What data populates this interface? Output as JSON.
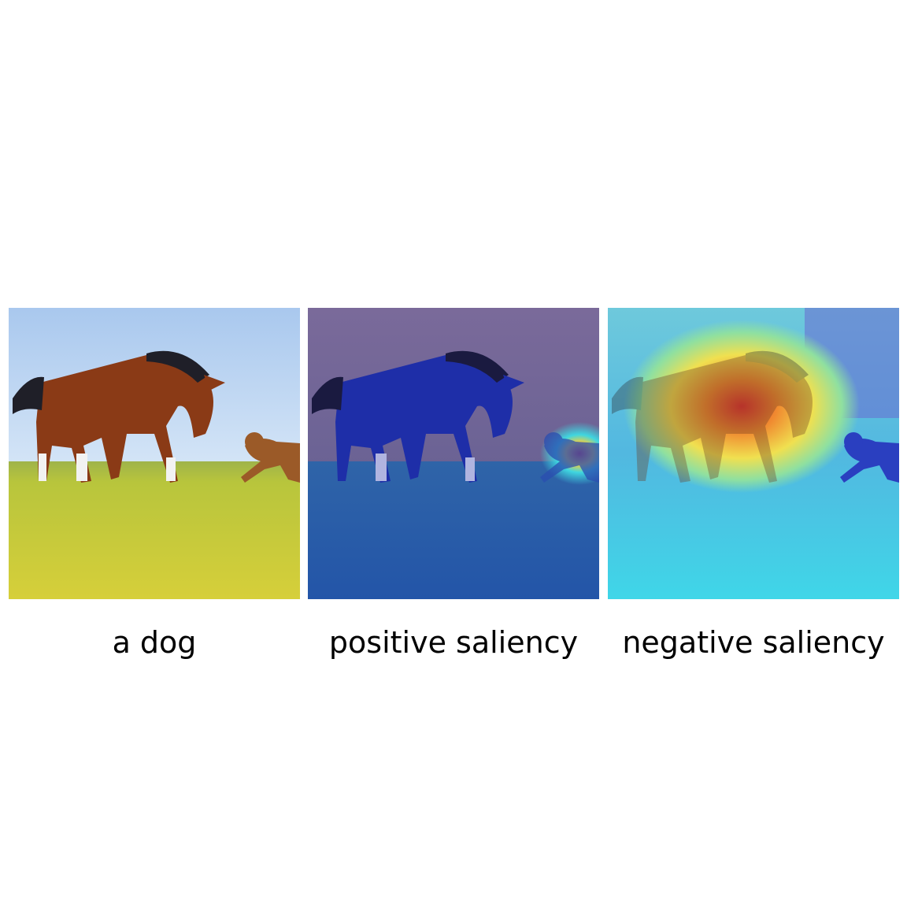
{
  "panels": [
    {
      "caption": "a dog",
      "image_icon": "horse-and-dog-photo",
      "overlay": "none"
    },
    {
      "caption": "positive saliency",
      "image_icon": "horse-and-dog-photo",
      "overlay": "saliency-heatmap"
    },
    {
      "caption": "negative saliency",
      "image_icon": "horse-and-dog-photo",
      "overlay": "saliency-heatmap"
    }
  ],
  "colors": {
    "sky": "#c3d9f2",
    "grass": "#c9c73d",
    "horse": "#8a3a16",
    "dog": "#9b5a28",
    "heat_low": "#1f2fa8",
    "heat_mid": "#3fd6e0",
    "heat_high": "#e03030"
  }
}
